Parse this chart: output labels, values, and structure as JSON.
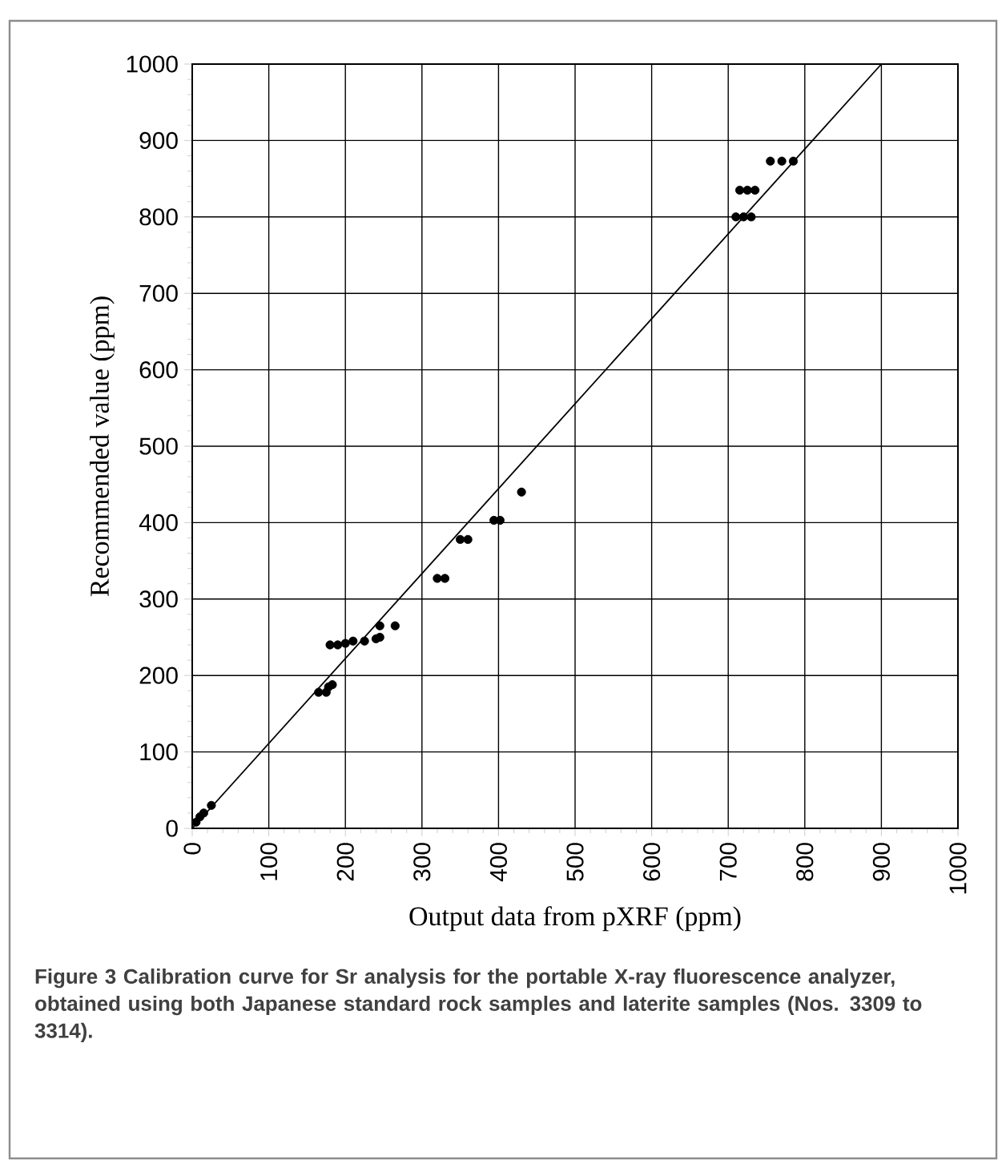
{
  "chart_data": {
    "type": "scatter",
    "xlabel": "Output data from pXRF (ppm)",
    "ylabel": "Recommended value (ppm)",
    "annotations": [
      "**Figure 3** Calibration curve for Sr analysis for the portable X-ray fluorescence analyzer, obtained using both Japanese standard rock samples and laterite samples (Nos. 3309 to 3314)."
    ],
    "xlim": [
      0,
      1000
    ],
    "ylim": [
      0,
      1000
    ],
    "xticks": [
      0,
      100,
      200,
      300,
      400,
      500,
      600,
      700,
      800,
      900,
      1000
    ],
    "yticks": [
      0,
      100,
      200,
      300,
      400,
      500,
      600,
      700,
      800,
      900,
      1000
    ],
    "grid": true,
    "series": [
      {
        "color": "#000000",
        "marker": "circle",
        "x": [
          5,
          10,
          15,
          25,
          165,
          175,
          178,
          183,
          180,
          190,
          200,
          210,
          225,
          240,
          245,
          245,
          265,
          320,
          330,
          350,
          360,
          394,
          402,
          430,
          710,
          720,
          730,
          715,
          725,
          735,
          755,
          770,
          785
        ],
        "values": [
          8,
          15,
          20,
          30,
          178,
          178,
          185,
          188,
          240,
          240,
          242,
          245,
          245,
          248,
          250,
          265,
          265,
          327,
          327,
          378,
          378,
          403,
          403,
          440,
          800,
          800,
          800,
          835,
          835,
          835,
          873,
          873,
          873
        ]
      },
      {
        "type": "line",
        "color": "#000000",
        "marker": "none",
        "line_style": "solid",
        "x": [
          0,
          900
        ],
        "values": [
          0,
          1000
        ]
      }
    ]
  }
}
